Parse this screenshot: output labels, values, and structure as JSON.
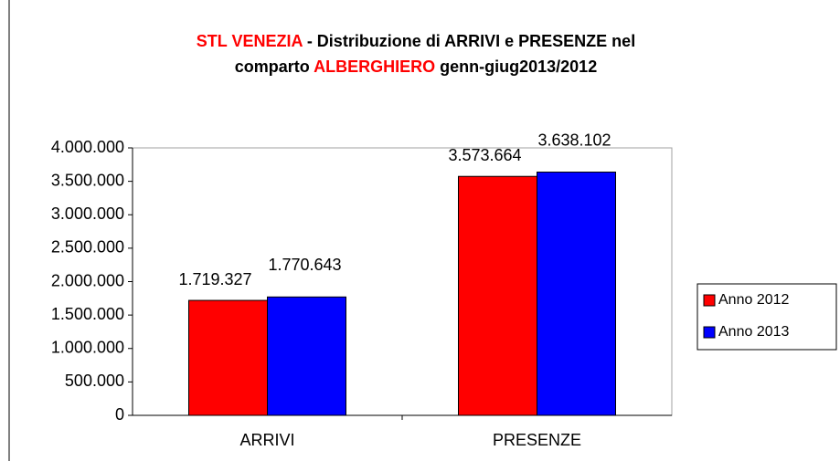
{
  "chart_data": {
    "type": "bar",
    "title_lines": [
      [
        {
          "text": "STL VENEZIA",
          "color": "#ff0000"
        },
        {
          "text": " - Distribuzione di ARRIVI e PRESENZE nel",
          "color": "#000000"
        }
      ],
      [
        {
          "text": "comparto ",
          "color": "#000000"
        },
        {
          "text": "ALBERGHIERO",
          "color": "#ff0000"
        },
        {
          "text": " genn-giug2013/2012",
          "color": "#000000"
        }
      ]
    ],
    "categories": [
      "ARRIVI",
      "PRESENZE"
    ],
    "series": [
      {
        "name": "Anno 2012",
        "color": "#ff0000",
        "values": [
          1719327,
          3573664
        ],
        "value_labels": [
          "1.719.327",
          "3.573.664"
        ]
      },
      {
        "name": "Anno 2013",
        "color": "#0000ff",
        "values": [
          1770643,
          3638102
        ],
        "value_labels": [
          "1.770.643",
          "3.638.102"
        ]
      }
    ],
    "ylim": [
      0,
      4000000
    ],
    "yticks": [
      0,
      {
        "value": 500000,
        "label": "500.000"
      },
      {
        "value": 1000000,
        "label": "1.000.000"
      },
      {
        "value": 1500000,
        "label": "1.500.000"
      },
      {
        "value": 2000000,
        "label": "2.000.000"
      },
      {
        "value": 2500000,
        "label": "2.500.000"
      },
      {
        "value": 3000000,
        "label": "3.000.000"
      },
      {
        "value": 3500000,
        "label": "3.500.000"
      },
      {
        "value": 4000000,
        "label": "4.000.000"
      }
    ],
    "grid": false,
    "legend": "right"
  }
}
